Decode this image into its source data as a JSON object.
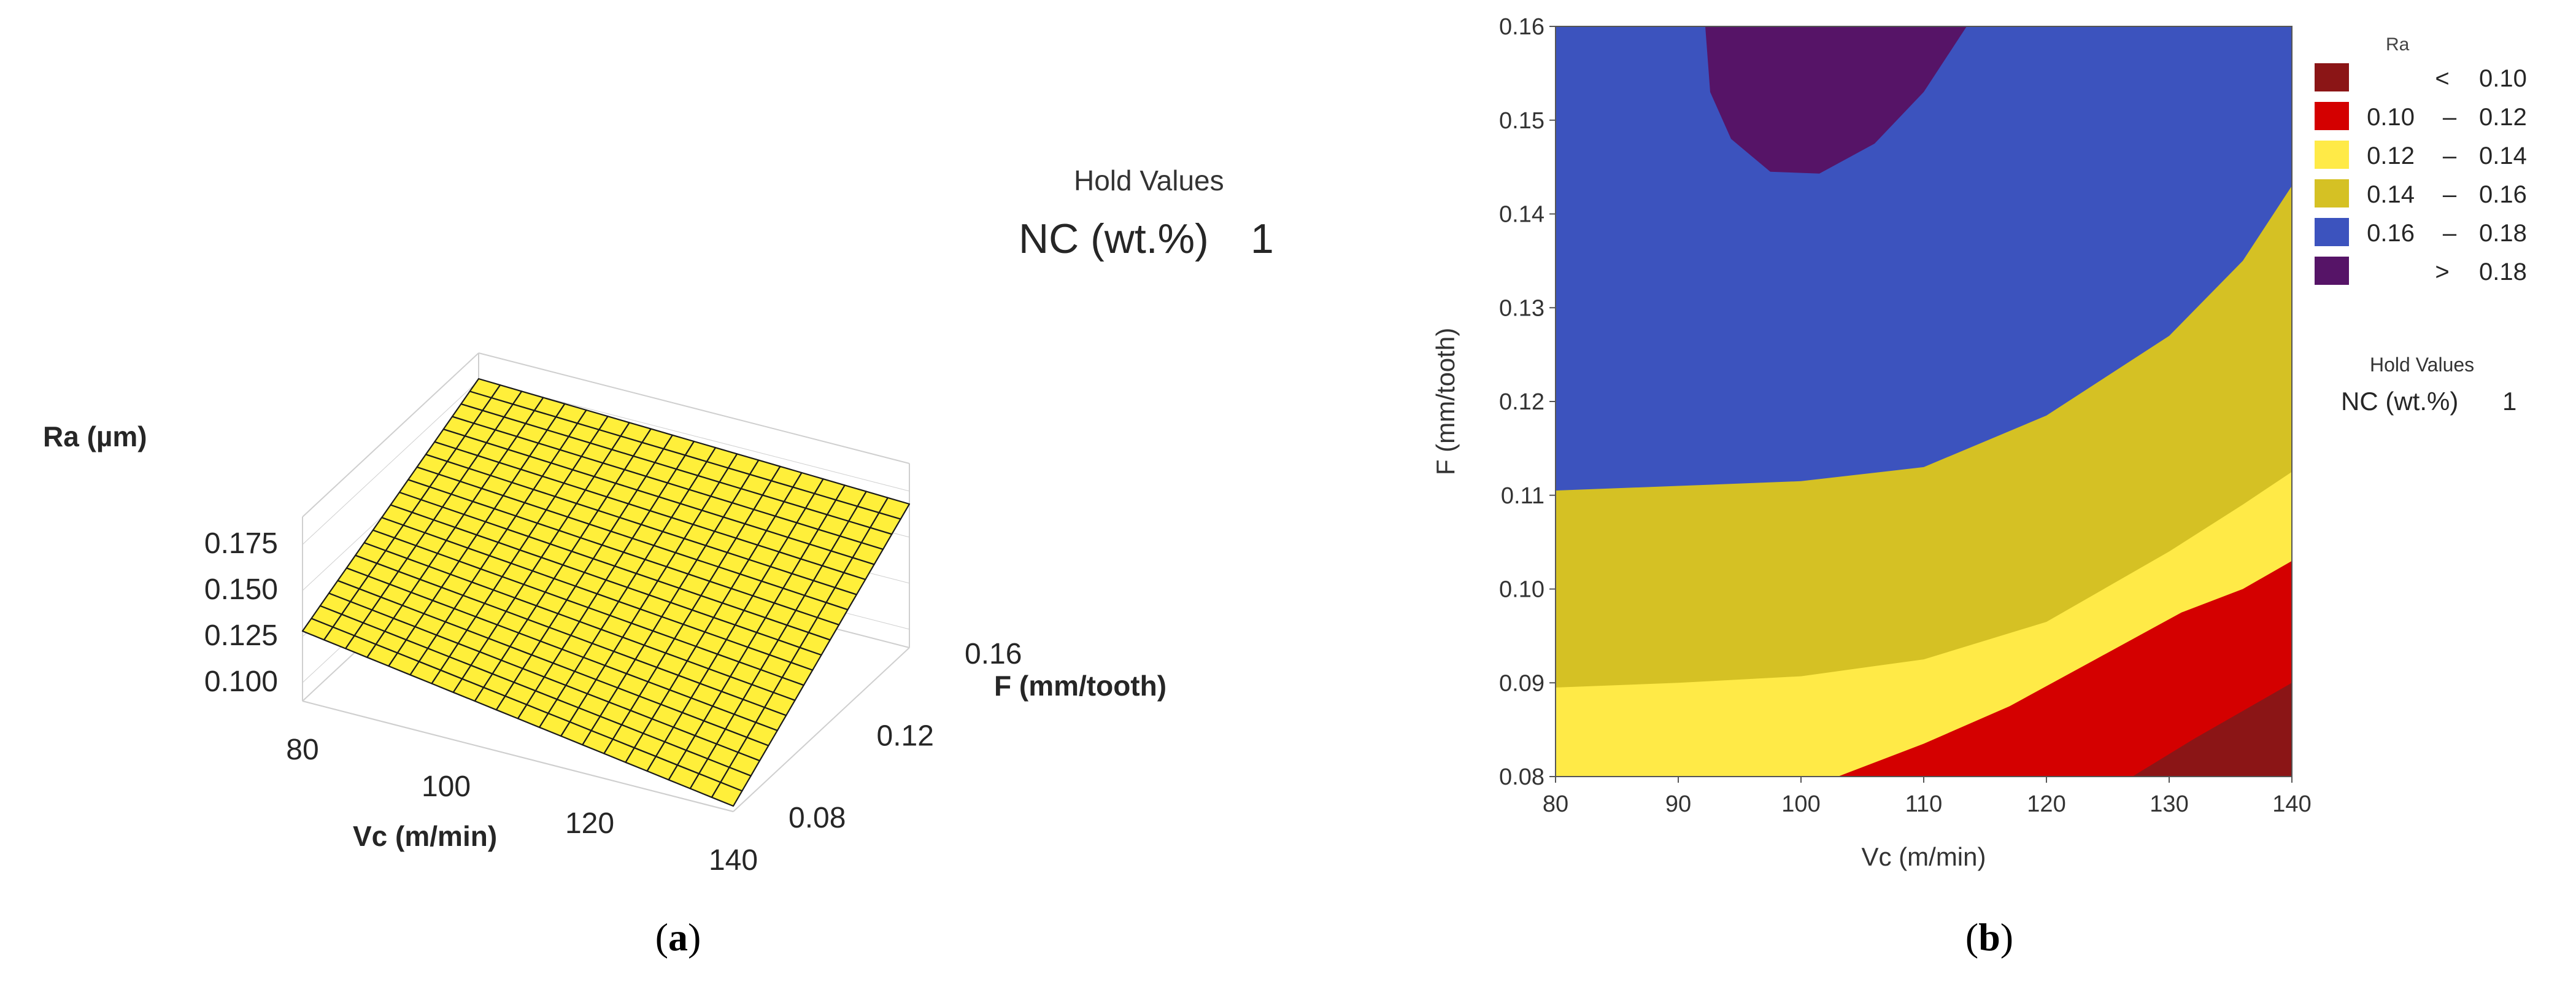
{
  "captions": {
    "a": "a",
    "b": "b"
  },
  "colors": {
    "surface_fill": "#FFEF3A",
    "surface_stroke": "#1A1A1A",
    "box_line": "#CFCFCF",
    "axis_text": "#262626"
  },
  "chart_data": [
    {
      "type": "surface",
      "id": "a",
      "title": "",
      "xlabel": "Vc (m/min)",
      "ylabel": "F (mm/tooth)",
      "zlabel": "Ra (µm)",
      "x_ticks": [
        "80",
        "100",
        "120",
        "140"
      ],
      "y_ticks": [
        "0.08",
        "0.12",
        "0.16"
      ],
      "z_ticks": [
        "0.100",
        "0.125",
        "0.150",
        "0.175"
      ],
      "xlim": [
        80,
        140
      ],
      "ylim": [
        0.08,
        0.16
      ],
      "zlim": [
        0.09,
        0.19
      ],
      "corner_values": {
        "vc80_f008": 0.128,
        "vc140_f008": 0.093,
        "vc80_f016": 0.176,
        "vc140_f016": 0.168
      },
      "hold_values": {
        "title": "Hold Values",
        "label": "NC (wt.%)",
        "value": "1"
      }
    },
    {
      "type": "contour",
      "id": "b",
      "title": "",
      "xlabel": "Vc (m/min)",
      "ylabel": "F (mm/tooth)",
      "x_ticks": [
        "80",
        "90",
        "100",
        "110",
        "120",
        "130",
        "140"
      ],
      "y_ticks": [
        "0.08",
        "0.09",
        "0.10",
        "0.11",
        "0.12",
        "0.13",
        "0.14",
        "0.15",
        "0.16"
      ],
      "xlim": [
        80,
        140
      ],
      "ylim": [
        0.08,
        0.16
      ],
      "legend_title": "Ra",
      "legend": [
        {
          "sym": "<",
          "lo": "",
          "hi": "0.10",
          "color": "#8B1516"
        },
        {
          "sym": "–",
          "lo": "0.10",
          "hi": "0.12",
          "color": "#D40000"
        },
        {
          "sym": "–",
          "lo": "0.12",
          "hi": "0.14",
          "color": "#FFEA47"
        },
        {
          "sym": "–",
          "lo": "0.14",
          "hi": "0.16",
          "color": "#D5C124"
        },
        {
          "sym": "–",
          "lo": "0.16",
          "hi": "0.18",
          "color": "#3C53BE"
        },
        {
          "sym": ">",
          "lo": "",
          "hi": "0.18",
          "color": "#561467"
        }
      ],
      "levels": [
        0.1,
        0.12,
        0.14,
        0.16,
        0.18
      ],
      "level_curves": [
        {
          "level": 0.1,
          "points": [
            [
              127,
              0.08
            ],
            [
              132,
              0.084
            ],
            [
              136,
              0.087
            ],
            [
              140,
              0.09
            ]
          ]
        },
        {
          "level": 0.12,
          "points": [
            [
              103,
              0.08
            ],
            [
              110,
              0.0835
            ],
            [
              117,
              0.0875
            ],
            [
              124,
              0.0925
            ],
            [
              131,
              0.0975
            ],
            [
              136,
              0.1
            ],
            [
              140,
              0.103
            ]
          ]
        },
        {
          "level": 0.14,
          "points": [
            [
              80,
              0.0895
            ],
            [
              90,
              0.09
            ],
            [
              100,
              0.0907
            ],
            [
              110,
              0.0925
            ],
            [
              120,
              0.0965
            ],
            [
              130,
              0.104
            ],
            [
              136,
              0.109
            ],
            [
              140,
              0.1125
            ]
          ]
        },
        {
          "level": 0.16,
          "points": [
            [
              80,
              0.1105
            ],
            [
              90,
              0.111
            ],
            [
              100,
              0.1115
            ],
            [
              110,
              0.113
            ],
            [
              120,
              0.1185
            ],
            [
              130,
              0.127
            ],
            [
              136,
              0.135
            ],
            [
              140,
              0.143
            ]
          ]
        },
        {
          "level": 0.18,
          "points": [
            [
              92.2,
              0.16
            ],
            [
              92.6,
              0.153
            ],
            [
              94.3,
              0.148
            ],
            [
              97.5,
              0.1445
            ],
            [
              101.5,
              0.1443
            ],
            [
              106,
              0.1475
            ],
            [
              110,
              0.153
            ],
            [
              113.5,
              0.16
            ]
          ]
        }
      ],
      "hold_values": {
        "title": "Hold Values",
        "label": "NC (wt.%)",
        "value": "1"
      }
    }
  ]
}
